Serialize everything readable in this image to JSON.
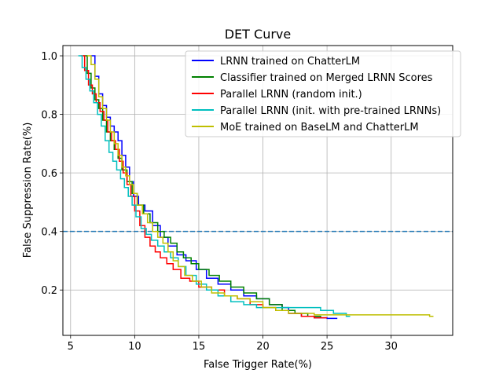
{
  "chart_data": {
    "type": "line",
    "title": "DET Curve",
    "xlabel": "False Trigger Rate(%)",
    "ylabel": "False Suppression Rate(%)",
    "xlim": [
      4.4,
      34.8
    ],
    "ylim": [
      0.045,
      1.035
    ],
    "xticks": [
      5,
      10,
      15,
      20,
      25,
      30
    ],
    "xtick_labels": [
      "5",
      "10",
      "15",
      "20",
      "25",
      "30"
    ],
    "yticks": [
      0.2,
      0.4,
      0.6,
      0.8,
      1.0
    ],
    "ytick_labels": [
      "0.2",
      "0.4",
      "0.6",
      "0.8",
      "1.0"
    ],
    "grid": true,
    "legend_position": "top-right",
    "reference_line": {
      "y": 0.4,
      "color": "#1f77b4",
      "style": "dashed"
    },
    "series": [
      {
        "name": "LRNN trained on ChatterLM",
        "color": "#0000ff",
        "x": [
          6.6,
          6.9,
          7.2,
          7.5,
          7.8,
          8.1,
          8.4,
          8.7,
          9.0,
          9.3,
          9.6,
          9.9,
          10.3,
          10.8,
          11.4,
          12.0,
          12.6,
          13.3,
          14.0,
          14.8,
          15.6,
          16.5,
          17.5,
          18.5,
          19.5,
          20.5,
          21.5,
          22.0,
          23.0,
          24.0,
          25.0,
          25.8
        ],
        "y": [
          1.0,
          0.93,
          0.87,
          0.83,
          0.79,
          0.76,
          0.74,
          0.71,
          0.66,
          0.62,
          0.57,
          0.52,
          0.49,
          0.47,
          0.42,
          0.38,
          0.35,
          0.32,
          0.3,
          0.27,
          0.24,
          0.22,
          0.2,
          0.18,
          0.17,
          0.15,
          0.14,
          0.12,
          0.11,
          0.105,
          0.103,
          0.103
        ]
      },
      {
        "name": "Classifier trained on Merged LRNN Scores",
        "color": "#008000",
        "x": [
          6.0,
          6.3,
          6.6,
          6.9,
          7.2,
          7.5,
          7.8,
          8.1,
          8.4,
          8.7,
          9.0,
          9.4,
          9.8,
          10.2,
          10.7,
          11.2,
          11.8,
          12.3,
          12.8,
          13.3,
          13.8,
          14.4,
          15.0,
          15.8,
          16.6,
          17.5,
          18.5,
          19.5,
          20.5,
          21.5,
          22.5,
          23.5,
          24.5
        ],
        "y": [
          1.0,
          0.94,
          0.89,
          0.85,
          0.82,
          0.78,
          0.74,
          0.71,
          0.68,
          0.65,
          0.61,
          0.57,
          0.53,
          0.49,
          0.46,
          0.43,
          0.4,
          0.38,
          0.36,
          0.33,
          0.31,
          0.29,
          0.27,
          0.25,
          0.23,
          0.21,
          0.19,
          0.17,
          0.15,
          0.13,
          0.12,
          0.11,
          0.105
        ]
      },
      {
        "name": "Parallel LRNN (random init.)",
        "color": "#ff0000",
        "x": [
          5.8,
          6.1,
          6.4,
          6.7,
          7.0,
          7.3,
          7.6,
          7.9,
          8.2,
          8.5,
          8.8,
          9.1,
          9.4,
          9.7,
          10.0,
          10.4,
          10.8,
          11.2,
          11.6,
          12.0,
          12.5,
          13.0,
          13.6,
          14.3,
          15.0,
          16.0,
          17.0,
          18.0,
          19.0,
          20.0,
          21.0,
          22.0,
          23.0,
          24.0,
          25.0
        ],
        "y": [
          1.0,
          0.95,
          0.9,
          0.87,
          0.84,
          0.81,
          0.78,
          0.74,
          0.71,
          0.68,
          0.64,
          0.6,
          0.56,
          0.52,
          0.47,
          0.42,
          0.38,
          0.35,
          0.33,
          0.31,
          0.29,
          0.27,
          0.24,
          0.23,
          0.21,
          0.2,
          0.18,
          0.17,
          0.15,
          0.14,
          0.13,
          0.12,
          0.11,
          0.105,
          0.105
        ]
      },
      {
        "name": "Parallel LRNN (init. with pre-trained LRNNs)",
        "color": "#00bfbf",
        "x": [
          5.6,
          5.9,
          6.2,
          6.5,
          6.8,
          7.1,
          7.4,
          7.7,
          8.0,
          8.3,
          8.6,
          8.9,
          9.2,
          9.5,
          9.8,
          10.1,
          10.5,
          10.9,
          11.3,
          11.8,
          12.3,
          12.8,
          13.4,
          14.0,
          14.8,
          15.6,
          16.5,
          17.5,
          18.5,
          19.5,
          20.5,
          21.5,
          22.5,
          23.5,
          24.5,
          25.5,
          26.5,
          26.8
        ],
        "y": [
          1.0,
          0.96,
          0.92,
          0.88,
          0.84,
          0.8,
          0.76,
          0.71,
          0.67,
          0.64,
          0.61,
          0.58,
          0.55,
          0.52,
          0.49,
          0.45,
          0.41,
          0.39,
          0.37,
          0.35,
          0.33,
          0.31,
          0.28,
          0.25,
          0.22,
          0.2,
          0.18,
          0.16,
          0.15,
          0.14,
          0.14,
          0.14,
          0.14,
          0.14,
          0.13,
          0.12,
          0.11,
          0.11
        ]
      },
      {
        "name": "MoE trained on BaseLM and ChatterLM",
        "color": "#bfbf00",
        "x": [
          6.3,
          6.6,
          6.9,
          7.2,
          7.5,
          7.8,
          8.1,
          8.4,
          8.7,
          9.0,
          9.3,
          9.6,
          9.9,
          10.2,
          10.6,
          11.0,
          11.4,
          11.8,
          12.2,
          12.6,
          13.0,
          13.4,
          13.9,
          14.5,
          15.2,
          16.0,
          17.0,
          18.0,
          19.0,
          20.0,
          21.0,
          22.0,
          23.0,
          24.0,
          25.0,
          26.0,
          27.0,
          28.0,
          29.0,
          30.0,
          31.0,
          32.0,
          33.0,
          33.3
        ],
        "y": [
          1.0,
          0.97,
          0.92,
          0.86,
          0.82,
          0.78,
          0.74,
          0.7,
          0.66,
          0.62,
          0.59,
          0.56,
          0.53,
          0.49,
          0.46,
          0.43,
          0.4,
          0.38,
          0.36,
          0.33,
          0.3,
          0.28,
          0.25,
          0.23,
          0.21,
          0.19,
          0.18,
          0.17,
          0.16,
          0.14,
          0.13,
          0.12,
          0.12,
          0.115,
          0.115,
          0.115,
          0.115,
          0.115,
          0.115,
          0.115,
          0.115,
          0.115,
          0.11,
          0.11
        ]
      }
    ]
  }
}
